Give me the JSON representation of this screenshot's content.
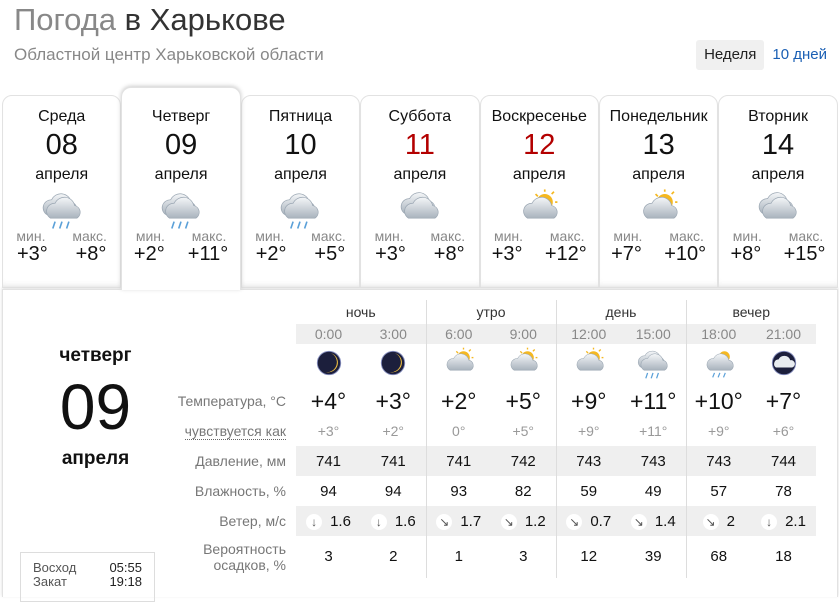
{
  "header": {
    "title_main": "Погода",
    "title_city": "в Харькове",
    "subtitle": "Областной центр Харьковской области"
  },
  "tabs": [
    {
      "label": "Неделя",
      "active": true
    },
    {
      "label": "10 дней",
      "active": false
    }
  ],
  "days": [
    {
      "name": "Среда",
      "date": "08",
      "month": "апреля",
      "icon": "rain-cloud-icon",
      "min_label": "мин.",
      "max_label": "макс.",
      "min": "+3°",
      "max": "+8°",
      "weekend": false
    },
    {
      "name": "Четверг",
      "date": "09",
      "month": "апреля",
      "icon": "rain-cloud-icon",
      "min_label": "мин.",
      "max_label": "макс.",
      "min": "+2°",
      "max": "+11°",
      "weekend": false,
      "selected": true
    },
    {
      "name": "Пятница",
      "date": "10",
      "month": "апреля",
      "icon": "rain-cloud-icon",
      "min_label": "мин.",
      "max_label": "макс.",
      "min": "+2°",
      "max": "+5°",
      "weekend": false
    },
    {
      "name": "Суббота",
      "date": "11",
      "month": "апреля",
      "icon": "cloudy-icon",
      "min_label": "мин.",
      "max_label": "макс.",
      "min": "+3°",
      "max": "+8°",
      "weekend": true
    },
    {
      "name": "Воскресенье",
      "date": "12",
      "month": "апреля",
      "icon": "sun-cloud-icon",
      "min_label": "мин.",
      "max_label": "макс.",
      "min": "+3°",
      "max": "+12°",
      "weekend": true
    },
    {
      "name": "Понедельник",
      "date": "13",
      "month": "апреля",
      "icon": "sun-cloud-icon",
      "min_label": "мин.",
      "max_label": "макс.",
      "min": "+7°",
      "max": "+10°",
      "weekend": false
    },
    {
      "name": "Вторник",
      "date": "14",
      "month": "апреля",
      "icon": "cloudy-icon",
      "min_label": "мин.",
      "max_label": "макс.",
      "min": "+8°",
      "max": "+15°",
      "weekend": false
    }
  ],
  "detail": {
    "day_name": "четверг",
    "date": "09",
    "month": "апреля",
    "sunrise_label": "Восход",
    "sunrise": "05:55",
    "sunset_label": "Закат",
    "sunset": "19:18",
    "periods": [
      "ночь",
      "утро",
      "день",
      "вечер"
    ],
    "times": [
      "0:00",
      "3:00",
      "6:00",
      "9:00",
      "12:00",
      "15:00",
      "18:00",
      "21:00"
    ],
    "icons": [
      "moon-icon",
      "moon-icon",
      "sun-cloud-icon",
      "sun-cloud-icon",
      "sun-cloud-icon",
      "rain-cloud-icon",
      "sun-rain-cloud-icon",
      "cloud-night-icon"
    ],
    "labels": {
      "temp": "Температура, °C",
      "feel": "чувствуется как",
      "pressure": "Давление, мм",
      "humidity": "Влажность, %",
      "wind": "Ветер, м/с",
      "precip_1": "Вероятность",
      "precip_2": "осадков, %"
    },
    "temp": [
      "+4°",
      "+3°",
      "+2°",
      "+5°",
      "+9°",
      "+11°",
      "+10°",
      "+7°"
    ],
    "feel": [
      "+3°",
      "+2°",
      "0°",
      "+5°",
      "+9°",
      "+11°",
      "+9°",
      "+6°"
    ],
    "pressure": [
      "741",
      "741",
      "741",
      "742",
      "743",
      "743",
      "743",
      "744"
    ],
    "humidity": [
      "94",
      "94",
      "93",
      "82",
      "59",
      "49",
      "57",
      "78"
    ],
    "wind_dir": [
      "↓",
      "↓",
      "↘",
      "↘",
      "↘",
      "↘",
      "↘",
      "↓"
    ],
    "wind": [
      "1.6",
      "1.6",
      "1.7",
      "1.2",
      "0.7",
      "1.4",
      "2",
      "2.1"
    ],
    "precip": [
      "3",
      "2",
      "1",
      "3",
      "12",
      "39",
      "68",
      "18"
    ]
  },
  "colors": {
    "weekend": "#b30000",
    "link": "#1a5fb4"
  }
}
